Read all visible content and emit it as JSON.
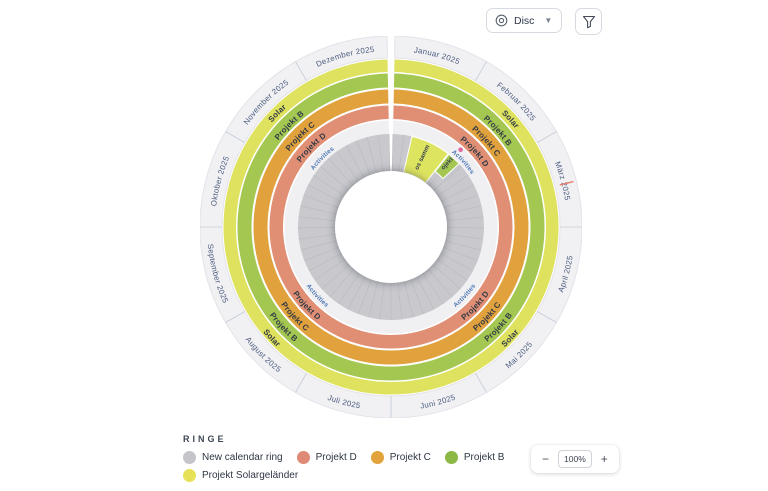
{
  "toolbar": {
    "view_selector": {
      "label": "Disc",
      "icon": "disc-icon"
    },
    "filter_button": {
      "icon": "funnel-icon"
    }
  },
  "legend": {
    "title": "RINGE",
    "items": [
      {
        "label": "New calendar ring",
        "color": "#c4c4ca"
      },
      {
        "label": "Projekt D",
        "color": "#de8a75"
      },
      {
        "label": "Projekt C",
        "color": "#e3a33c"
      },
      {
        "label": "Projekt B",
        "color": "#8cb945"
      },
      {
        "label": "Projekt Solargeländer",
        "color": "#e6e156"
      }
    ]
  },
  "zoom_control": {
    "minus": "−",
    "value": "100%",
    "plus": "+"
  },
  "chart_data": {
    "type": "radial-calendar-disc",
    "months": [
      "Januar 2025",
      "Februar 2025",
      "März 2025",
      "April 2025",
      "Mai 2025",
      "Juni 2025",
      "Juli 2025",
      "August 2025",
      "September 2025",
      "Oktober 2025",
      "November 2025",
      "Dezember 2025"
    ],
    "month_label_color": "#4a5b7d",
    "gap_deg": 1.2,
    "rings": [
      {
        "id": "solar",
        "label": "Solar",
        "project": "Projekt Solargeländer",
        "color": "#dfe25f"
      },
      {
        "id": "projekt-b",
        "label": "Projekt B",
        "color": "#a4c751"
      },
      {
        "id": "projekt-c",
        "label": "Projekt C",
        "color": "#e1a13c"
      },
      {
        "id": "projekt-d",
        "label": "Projekt D",
        "color": "#e08f74"
      },
      {
        "id": "activities",
        "label": "Activities",
        "color": "#f0f0f3",
        "label_color": "#4a74b0"
      },
      {
        "id": "calendar",
        "label": "New calendar ring",
        "color": "#c8c8cd",
        "tick_count": 52
      }
    ],
    "ring_label_color": "#323a46",
    "label_angles_deg": [
      315,
      48,
      133,
      227
    ],
    "activities": [
      {
        "label": "Infos sammeln",
        "color": "#dde45f",
        "start_deg": 13,
        "end_deg": 38,
        "inner_r": 56,
        "outer_r": 93
      },
      {
        "label": "Projekt B",
        "color": "#a4c751",
        "start_deg": 38.5,
        "end_deg": 47,
        "inner_r": 71,
        "outer_r": 93
      }
    ],
    "activity_label_color": "#39414f",
    "milestone": {
      "angle_deg": 42,
      "color": "#dd6b9e"
    },
    "today_marker": {
      "angle_deg": 76,
      "color": "#e87d6d"
    }
  }
}
